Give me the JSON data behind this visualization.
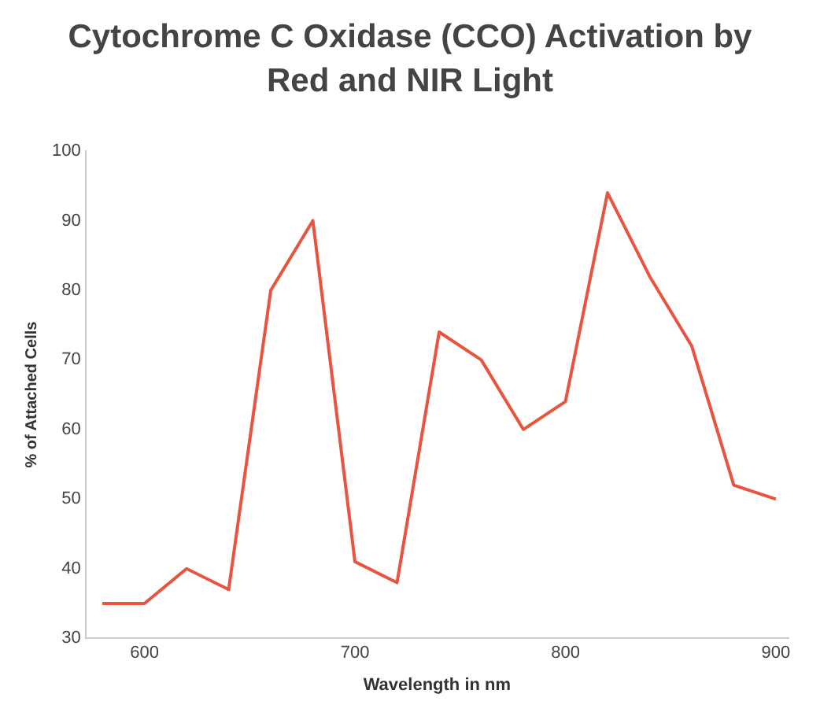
{
  "chart_data": {
    "type": "line",
    "title": "Cytochrome C Oxidase (CCO) Activation by Red and NIR Light",
    "xlabel": "Wavelength in nm",
    "ylabel": "% of Attached Cells",
    "x": [
      580,
      600,
      620,
      640,
      660,
      680,
      700,
      720,
      740,
      760,
      780,
      800,
      820,
      840,
      860,
      880,
      900
    ],
    "series": [
      {
        "color": "#e8543f",
        "values": [
          35,
          35,
          40,
          37,
          80,
          90,
          41,
          38,
          74,
          70,
          60,
          64,
          94,
          82,
          72,
          52,
          50
        ]
      }
    ],
    "xlim": [
      572,
      906
    ],
    "xticks": [
      600,
      700,
      800,
      900
    ],
    "ylim": [
      30,
      100
    ],
    "yticks": [
      30,
      40,
      50,
      60,
      70,
      80,
      90,
      100
    ],
    "grid": false,
    "legend": false,
    "marker": "none",
    "line_style": "solid"
  }
}
